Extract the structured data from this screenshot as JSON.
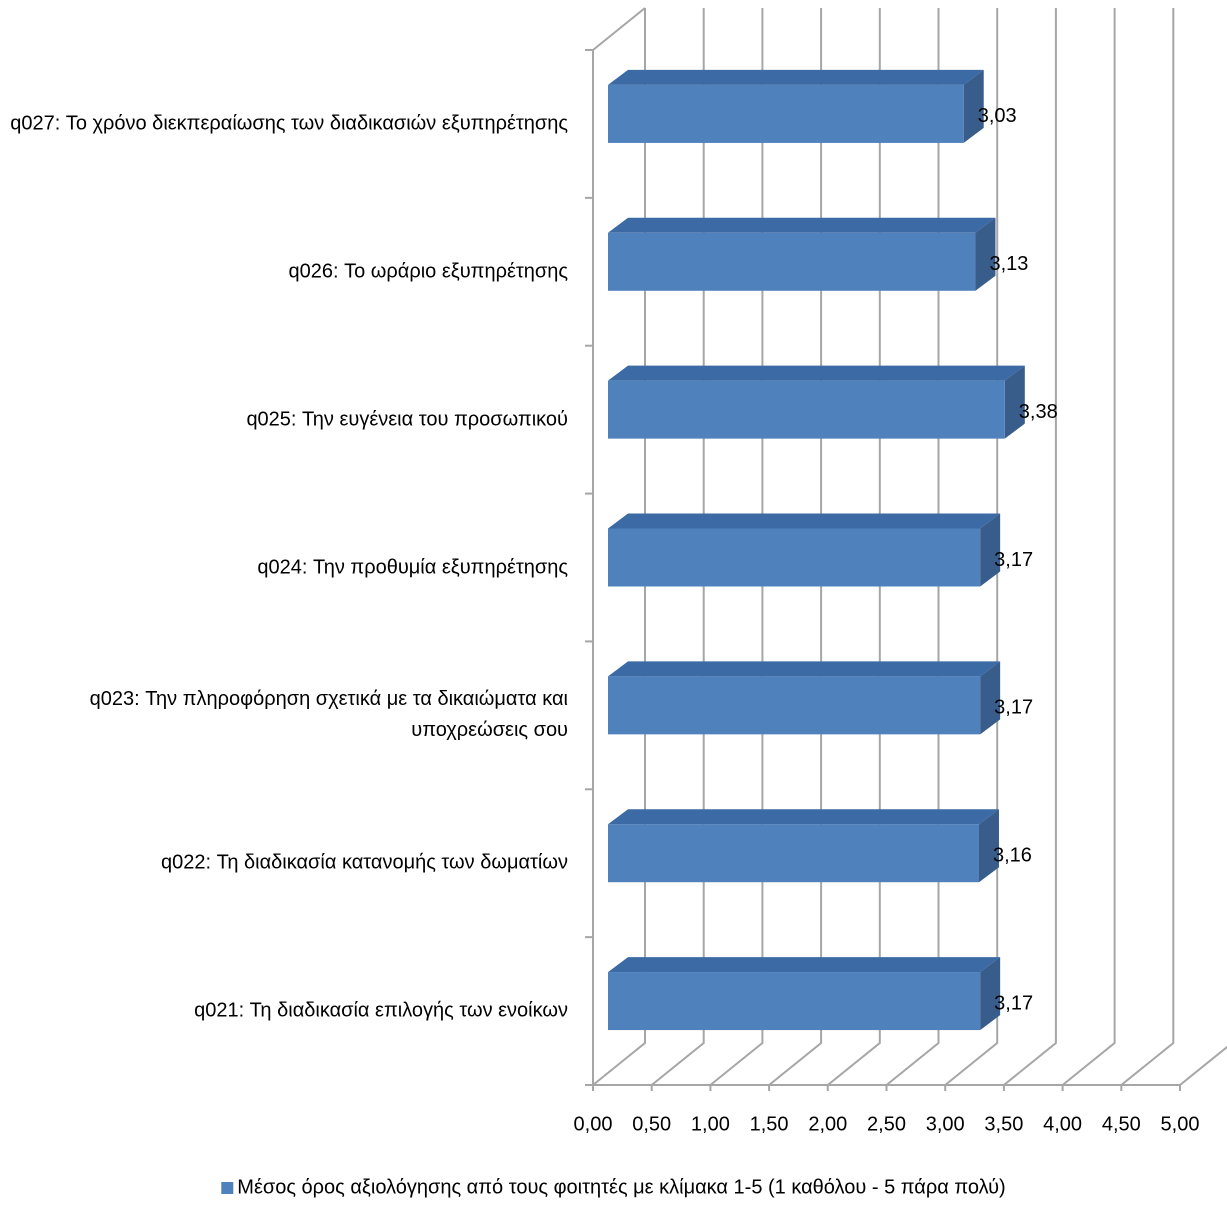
{
  "chart_data": {
    "type": "bar3d",
    "orientation": "horizontal",
    "categories": [
      "q027: Το χρόνο διεκπεραίωσης των διαδικασιών εξυπηρέτησης",
      "q026: Το ωράριο εξυπηρέτησης",
      "q025: Την ευγένεια του προσωπικού",
      "q024: Την προθυμία εξυπηρέτησης",
      "q023: Την πληροφόρηση σχετικά με τα δικαιώματα και υποχρεώσεις σου",
      "q022: Τη διαδικασία κατανομής των δωματίων",
      "q021: Τη διαδικασία επιλογής των ενοίκων"
    ],
    "series": [
      {
        "name": "Μέσος όρος αξιολόγησης από τους φοιτητές με κλίμακα 1-5 (1 καθόλου - 5 πάρα πολύ)",
        "color": "#4f81bd",
        "values": [
          3.03,
          3.13,
          3.38,
          3.17,
          3.17,
          3.16,
          3.17
        ],
        "value_labels": [
          "3,03",
          "3,13",
          "3,38",
          "3,17",
          "3,17",
          "3,16",
          "3,17"
        ]
      }
    ],
    "xlim": [
      0,
      5
    ],
    "xticks": [
      {
        "value": 0,
        "label": "0,00"
      },
      {
        "value": 0.5,
        "label": "0,50"
      },
      {
        "value": 1,
        "label": "1,00"
      },
      {
        "value": 1.5,
        "label": "1,50"
      },
      {
        "value": 2,
        "label": "2,00"
      },
      {
        "value": 2.5,
        "label": "2,50"
      },
      {
        "value": 3,
        "label": "3,00"
      },
      {
        "value": 3.5,
        "label": "3,50"
      },
      {
        "value": 4,
        "label": "4,00"
      },
      {
        "value": 4.5,
        "label": "4,50"
      },
      {
        "value": 5,
        "label": "5,00"
      }
    ],
    "grid": true,
    "legend": "bottom"
  }
}
